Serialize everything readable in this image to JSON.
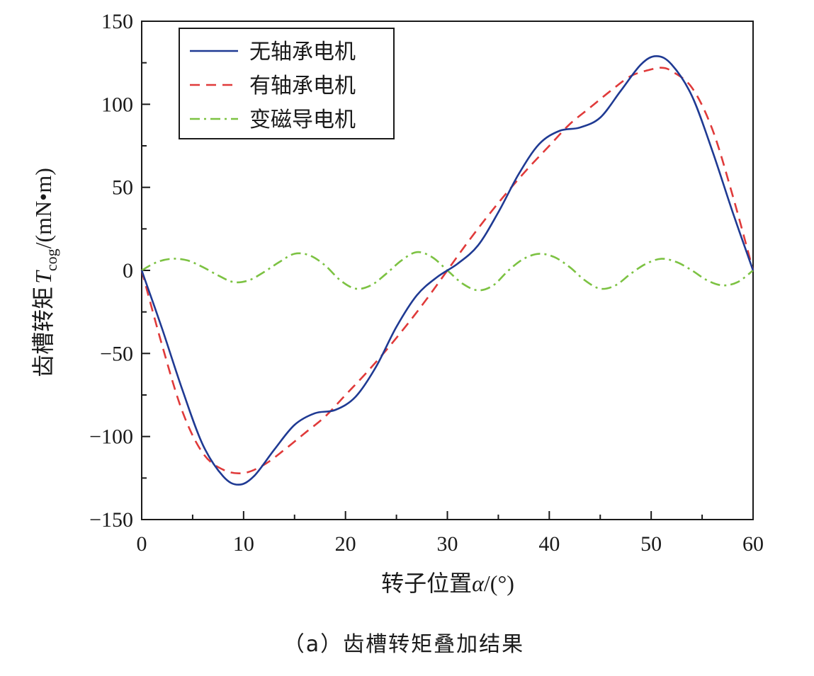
{
  "chart_data": {
    "type": "line",
    "xlim": [
      0,
      60
    ],
    "ylim": [
      -150,
      150
    ],
    "x_ticks": [
      0,
      10,
      20,
      30,
      40,
      50,
      60
    ],
    "x_tick_labels": [
      "0",
      "10",
      "20",
      "30",
      "40",
      "50",
      "60"
    ],
    "y_ticks": [
      -150,
      -100,
      -50,
      0,
      50,
      100,
      150
    ],
    "y_tick_labels": [
      "−150",
      "−100",
      "−50",
      "0",
      "50",
      "100",
      "150"
    ],
    "xlabel_prefix": "转子位置",
    "xlabel_symbol": "α",
    "xlabel_unit": "/(°)",
    "ylabel_prefix": "齿槽转矩",
    "ylabel_symbol": "T",
    "ylabel_subscript": "cog",
    "ylabel_unit": "/(mN•m)",
    "grid": false,
    "legend_position": "top-left",
    "caption": "（a）齿槽转矩叠加结果",
    "series": [
      {
        "name": "无轴承电机",
        "color": "#1f3a93",
        "style": "solid",
        "x": [
          0,
          2,
          4,
          6,
          8,
          9.5,
          11,
          13,
          15,
          17,
          19,
          21,
          23,
          25,
          27,
          29,
          31,
          33,
          35,
          37,
          39,
          41,
          43,
          45,
          47,
          49,
          50.5,
          52,
          54,
          56,
          58,
          60
        ],
        "y": [
          0,
          -35,
          -72,
          -105,
          -124,
          -129,
          -124,
          -108,
          -93,
          -86,
          -84,
          -76,
          -58,
          -34,
          -15,
          -4,
          4,
          15,
          35,
          58,
          76,
          84,
          86,
          92,
          108,
          124,
          129,
          124,
          105,
          72,
          35,
          0
        ]
      },
      {
        "name": "有轴承电机",
        "color": "#e03a3a",
        "style": "dashed",
        "x": [
          0,
          2,
          4,
          6,
          8,
          10,
          12,
          14,
          16,
          18,
          20,
          22,
          24,
          26,
          28,
          30,
          32,
          34,
          36,
          38,
          40,
          42,
          44,
          46,
          48,
          50,
          51,
          52,
          54,
          56,
          58,
          60
        ],
        "y": [
          0,
          -45,
          -85,
          -110,
          -120,
          -122,
          -117,
          -108,
          -98,
          -88,
          -75,
          -62,
          -48,
          -33,
          -17,
          0,
          17,
          33,
          48,
          62,
          75,
          88,
          98,
          108,
          117,
          121,
          122,
          120,
          110,
          85,
          45,
          0
        ]
      },
      {
        "name": "变磁导电机",
        "color": "#7cc242",
        "style": "dashdot",
        "x": [
          0,
          1.5,
          3,
          4.5,
          6,
          7.5,
          9,
          10.5,
          12,
          13.5,
          15,
          16.5,
          18,
          19.5,
          21,
          22.5,
          24,
          25.5,
          27,
          28.5,
          30,
          31.5,
          33,
          34.5,
          36,
          37.5,
          39,
          40.5,
          42,
          43.5,
          45,
          46.5,
          48,
          49.5,
          51,
          52.5,
          54,
          55.5,
          57,
          58.5,
          60
        ],
        "y": [
          0,
          5,
          7,
          6,
          2,
          -3,
          -7,
          -6,
          -1,
          5,
          10,
          9,
          3,
          -6,
          -11,
          -9,
          -2,
          6,
          11,
          8,
          0,
          -8,
          -12,
          -9,
          0,
          7,
          10,
          8,
          2,
          -6,
          -11,
          -9,
          -2,
          4,
          7,
          5,
          0,
          -6,
          -9,
          -7,
          0
        ]
      }
    ]
  }
}
